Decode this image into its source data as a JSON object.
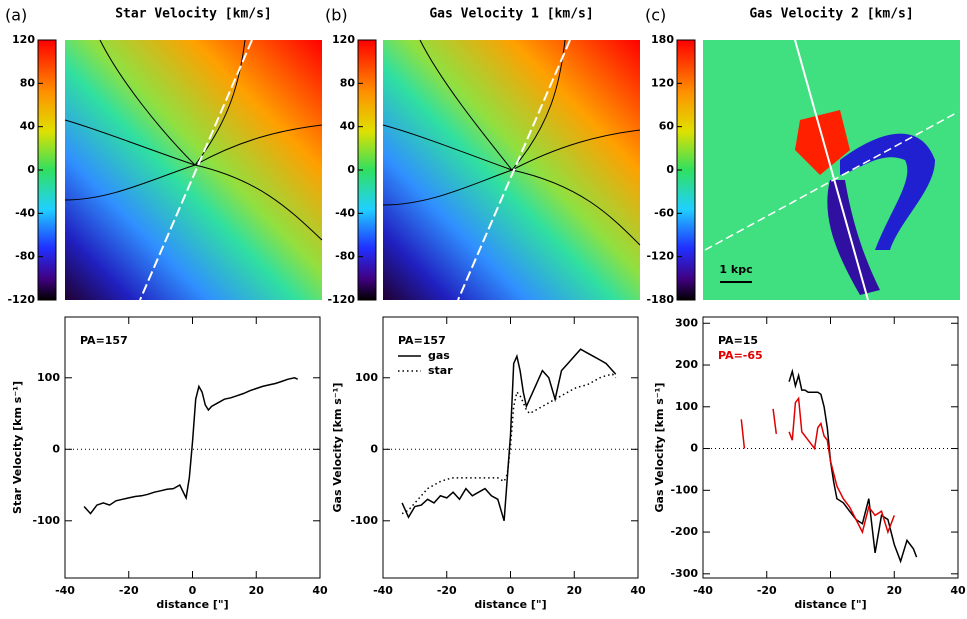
{
  "chart_data": [
    {
      "type": "map",
      "panel_label": "(a)",
      "title": "Star Velocity [km/s]",
      "clim": [
        -120,
        120
      ],
      "cticks": [
        120,
        80,
        40,
        0,
        -40,
        -80,
        -120
      ]
    },
    {
      "type": "map",
      "panel_label": "(b)",
      "title": "Gas Velocity 1 [km/s]",
      "clim": [
        -120,
        120
      ],
      "cticks": [
        120,
        80,
        40,
        0,
        -40,
        -80,
        -120
      ]
    },
    {
      "type": "map",
      "panel_label": "(c)",
      "title": "Gas Velocity 2 [km/s]",
      "clim": [
        -180,
        180
      ],
      "cticks": [
        180,
        120,
        60,
        0,
        -60,
        -120,
        -180
      ],
      "scale_bar": "1 kpc"
    },
    {
      "type": "line",
      "annotation": "PA=157",
      "xlabel": "distance [\"]",
      "ylabel": "Star Velocity [km s⁻¹]",
      "xlim": [
        -40,
        40
      ],
      "xticks": [
        -40,
        -20,
        0,
        20,
        40
      ],
      "ylim": [
        -180,
        185
      ],
      "yticks": [
        -100,
        0,
        100
      ],
      "x": [
        -34,
        -32,
        -30,
        -28,
        -26,
        -24,
        -22,
        -20,
        -18,
        -16,
        -14,
        -12,
        -10,
        -8,
        -6,
        -4,
        -2,
        -1,
        0,
        1,
        2,
        3,
        4,
        5,
        6,
        8,
        10,
        12,
        14,
        16,
        18,
        20,
        22,
        24,
        26,
        28,
        30,
        32,
        33
      ],
      "series": [
        {
          "color": "#000000",
          "dash": "solid",
          "values": [
            -80,
            -90,
            -78,
            -75,
            -78,
            -72,
            -70,
            -68,
            -66,
            -65,
            -63,
            -60,
            -58,
            -56,
            -55,
            -50,
            -68,
            -40,
            10,
            70,
            88,
            80,
            62,
            55,
            60,
            65,
            70,
            72,
            75,
            78,
            82,
            85,
            88,
            90,
            92,
            95,
            98,
            100,
            98
          ]
        }
      ]
    },
    {
      "type": "line",
      "annotation": "PA=157",
      "xlabel": "distance [\"]",
      "ylabel": "Gas Velocity [km s⁻¹]",
      "xlim": [
        -40,
        40
      ],
      "xticks": [
        -40,
        -20,
        0,
        20,
        40
      ],
      "ylim": [
        -180,
        185
      ],
      "yticks": [
        -100,
        0,
        100
      ],
      "x": [
        -34,
        -32,
        -30,
        -28,
        -26,
        -24,
        -22,
        -20,
        -18,
        -16,
        -14,
        -12,
        -10,
        -8,
        -6,
        -4,
        -2,
        -1,
        0,
        1,
        2,
        3,
        4,
        5,
        6,
        8,
        10,
        12,
        14,
        16,
        18,
        20,
        22,
        24,
        26,
        28,
        30,
        32,
        33
      ],
      "series": [
        {
          "name": "gas",
          "color": "#000000",
          "dash": "solid",
          "values": [
            -75,
            -95,
            -80,
            -78,
            -70,
            -75,
            -65,
            -68,
            -60,
            -70,
            -55,
            -65,
            -60,
            -55,
            -65,
            -70,
            -100,
            -40,
            20,
            120,
            130,
            110,
            80,
            60,
            70,
            90,
            110,
            100,
            70,
            110,
            120,
            130,
            140,
            135,
            130,
            125,
            120,
            110,
            105
          ]
        },
        {
          "name": "star",
          "color": "#000000",
          "dash": "dotted",
          "values": [
            -90,
            -85,
            -75,
            -65,
            -55,
            -50,
            -45,
            -42,
            -40,
            -40,
            -40,
            -40,
            -40,
            -40,
            -40,
            -40,
            -45,
            -35,
            5,
            60,
            80,
            75,
            65,
            55,
            50,
            55,
            60,
            65,
            70,
            75,
            80,
            85,
            88,
            90,
            95,
            100,
            103,
            105,
            100
          ]
        }
      ]
    },
    {
      "type": "line",
      "xlabel": "distance [\"]",
      "ylabel": "Gas Velocity [km s⁻¹]",
      "xlim": [
        -40,
        40
      ],
      "xticks": [
        -40,
        -20,
        0,
        20,
        40
      ],
      "ylim": [
        -310,
        315
      ],
      "yticks": [
        -300,
        -200,
        -100,
        0,
        100,
        200,
        300
      ],
      "x": [
        -28,
        -27,
        -19,
        -18,
        -17,
        -16,
        -13,
        -12,
        -11,
        -10,
        -9,
        -8,
        -7,
        -6,
        -5,
        -4,
        -3,
        -2,
        -1,
        0,
        1,
        2,
        4,
        6,
        8,
        10,
        12,
        14,
        16,
        18,
        20,
        22,
        24,
        26,
        27
      ],
      "series": [
        {
          "name": "PA=15",
          "color": "#000000",
          "dash": "solid",
          "values": [
            null,
            null,
            null,
            null,
            null,
            null,
            160,
            185,
            150,
            175,
            140,
            140,
            135,
            135,
            135,
            135,
            130,
            100,
            50,
            -30,
            -80,
            -120,
            -130,
            -150,
            -170,
            -180,
            -120,
            -250,
            -160,
            -170,
            -230,
            -270,
            -220,
            -240,
            -260
          ]
        },
        {
          "name": "PA=-65",
          "color": "#e00000",
          "dash": "solid",
          "values": [
            70,
            0,
            null,
            95,
            35,
            null,
            40,
            20,
            110,
            120,
            40,
            30,
            20,
            10,
            0,
            50,
            60,
            30,
            20,
            -30,
            -60,
            -90,
            -120,
            -140,
            -170,
            -200,
            -140,
            -160,
            -150,
            -200,
            -160,
            null,
            null,
            null,
            null
          ]
        }
      ]
    }
  ]
}
